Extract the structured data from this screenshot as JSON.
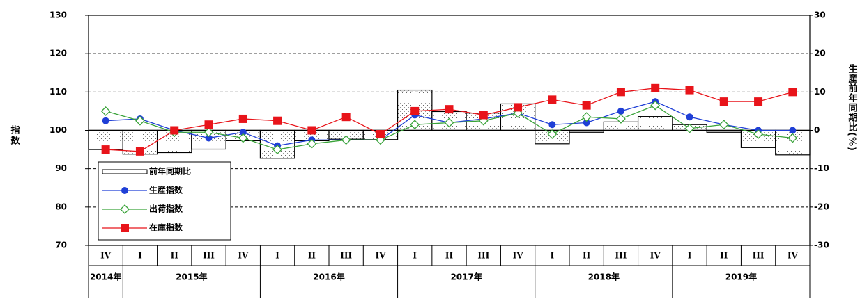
{
  "chart_data": {
    "type": "bar",
    "y_label": "指数",
    "y2_label": "生産前年同期比(%)",
    "categories": [
      "IV",
      "I",
      "II",
      "III",
      "IV",
      "I",
      "II",
      "III",
      "IV",
      "I",
      "II",
      "III",
      "IV",
      "I",
      "II",
      "III",
      "IV",
      "I",
      "II",
      "III",
      "IV"
    ],
    "years": [
      "2014年",
      "2015年",
      "2016年",
      "2017年",
      "2018年",
      "2019年"
    ],
    "ylim": [
      70,
      130
    ],
    "yticks": [
      70,
      80,
      90,
      100,
      110,
      120,
      130
    ],
    "y2lim": [
      -30,
      30
    ],
    "y2ticks": [
      -30,
      -20,
      -10,
      0,
      10,
      20,
      30
    ],
    "grid": true,
    "legend": "lower left",
    "series": [
      {
        "name": "前年同期比",
        "type": "bar",
        "axis": "y2",
        "color": "#ffffff",
        "values": [
          -5,
          -6.2,
          -5.8,
          -4.9,
          -2.7,
          -7.3,
          -2.7,
          -2.3,
          -2.4,
          10.5,
          4.9,
          4.5,
          6.9,
          -3.5,
          -0.5,
          2.2,
          3.6,
          1.5,
          -0.5,
          -4.5,
          -6.4
        ]
      },
      {
        "name": "生産指数",
        "type": "line",
        "color": "#1f3fd6",
        "marker": "circle",
        "values": [
          102.5,
          103,
          100,
          98,
          99.5,
          96,
          97.5,
          97.5,
          97.5,
          104,
          102,
          103,
          104.5,
          101.5,
          102,
          105,
          107.5,
          103.5,
          101.5,
          100,
          100
        ]
      },
      {
        "name": "出荷指数",
        "type": "line",
        "color": "#3aa33a",
        "marker": "diamond",
        "values": [
          105,
          102.5,
          99.5,
          99.5,
          98,
          95,
          96.5,
          97.5,
          97.5,
          101.5,
          102,
          102.5,
          104.5,
          99,
          103.5,
          103,
          106.5,
          100.5,
          101.5,
          99,
          98
        ]
      },
      {
        "name": "在庫指数",
        "type": "line",
        "color": "#e8141a",
        "marker": "square",
        "values": [
          95,
          94.5,
          100,
          101.5,
          103,
          102.5,
          100,
          103.5,
          99,
          105,
          105.5,
          104,
          106,
          108,
          106.5,
          110,
          111,
          110.5,
          107.5,
          107.5,
          110
        ]
      }
    ]
  }
}
